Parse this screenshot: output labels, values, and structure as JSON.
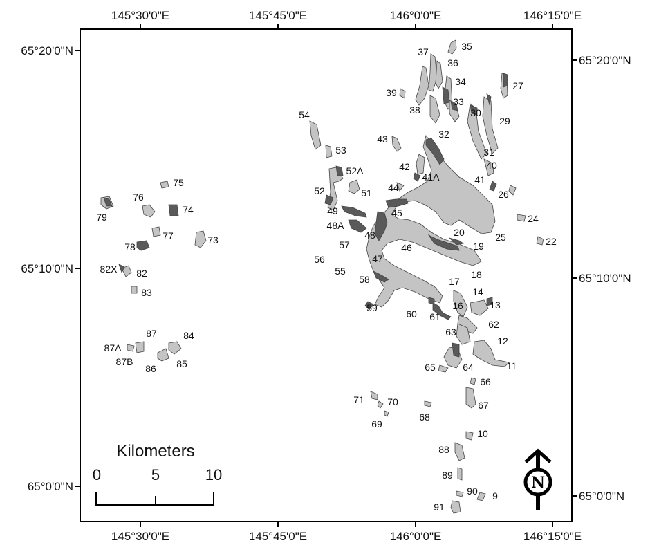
{
  "coords": {
    "top": [
      "145°30'0\"E",
      "145°45'0\"E",
      "146°0'0\"E",
      "146°15'0\"E"
    ],
    "bottom": [
      "145°30'0\"E",
      "145°45'0\"E",
      "146°0'0\"E",
      "146°15'0\"E"
    ],
    "left": [
      "65°20'0\"N",
      "65°10'0\"N",
      "65°0'0\"N"
    ],
    "right": [
      "65°20'0\"N",
      "65°10'0\"N",
      "65°0'0\"N"
    ]
  },
  "scale_bar": {
    "title": "Kilometers",
    "ticks": [
      "0",
      "5",
      "10"
    ]
  },
  "north_arrow": {
    "letter": "N"
  },
  "colors": {
    "glacier_light": "#c4c4c4",
    "glacier_dark": "#5a5a5a",
    "frame": "#000000"
  },
  "glaciers": [
    {
      "id": "35"
    },
    {
      "id": "37"
    },
    {
      "id": "36"
    },
    {
      "id": "34"
    },
    {
      "id": "27"
    },
    {
      "id": "39"
    },
    {
      "id": "38"
    },
    {
      "id": "33"
    },
    {
      "id": "30"
    },
    {
      "id": "29"
    },
    {
      "id": "54"
    },
    {
      "id": "32"
    },
    {
      "id": "43"
    },
    {
      "id": "53"
    },
    {
      "id": "31"
    },
    {
      "id": "42"
    },
    {
      "id": "40"
    },
    {
      "id": "52A"
    },
    {
      "id": "41A"
    },
    {
      "id": "41"
    },
    {
      "id": "52"
    },
    {
      "id": "51"
    },
    {
      "id": "44"
    },
    {
      "id": "26"
    },
    {
      "id": "75"
    },
    {
      "id": "76"
    },
    {
      "id": "74"
    },
    {
      "id": "79"
    },
    {
      "id": "49"
    },
    {
      "id": "45"
    },
    {
      "id": "24"
    },
    {
      "id": "48A"
    },
    {
      "id": "77"
    },
    {
      "id": "48"
    },
    {
      "id": "20"
    },
    {
      "id": "25"
    },
    {
      "id": "73"
    },
    {
      "id": "22"
    },
    {
      "id": "78"
    },
    {
      "id": "57"
    },
    {
      "id": "19"
    },
    {
      "id": "46"
    },
    {
      "id": "56"
    },
    {
      "id": "47"
    },
    {
      "id": "82X"
    },
    {
      "id": "55"
    },
    {
      "id": "82"
    },
    {
      "id": "18"
    },
    {
      "id": "58"
    },
    {
      "id": "17"
    },
    {
      "id": "83"
    },
    {
      "id": "14"
    },
    {
      "id": "16"
    },
    {
      "id": "13"
    },
    {
      "id": "59"
    },
    {
      "id": "60"
    },
    {
      "id": "61"
    },
    {
      "id": "62"
    },
    {
      "id": "63"
    },
    {
      "id": "87"
    },
    {
      "id": "84"
    },
    {
      "id": "12"
    },
    {
      "id": "87A"
    },
    {
      "id": "85"
    },
    {
      "id": "87B"
    },
    {
      "id": "86"
    },
    {
      "id": "65"
    },
    {
      "id": "64"
    },
    {
      "id": "11"
    },
    {
      "id": "66"
    },
    {
      "id": "71"
    },
    {
      "id": "70"
    },
    {
      "id": "67"
    },
    {
      "id": "68"
    },
    {
      "id": "69"
    },
    {
      "id": "10"
    },
    {
      "id": "88"
    },
    {
      "id": "89"
    },
    {
      "id": "90"
    },
    {
      "id": "9"
    },
    {
      "id": "91"
    }
  ]
}
